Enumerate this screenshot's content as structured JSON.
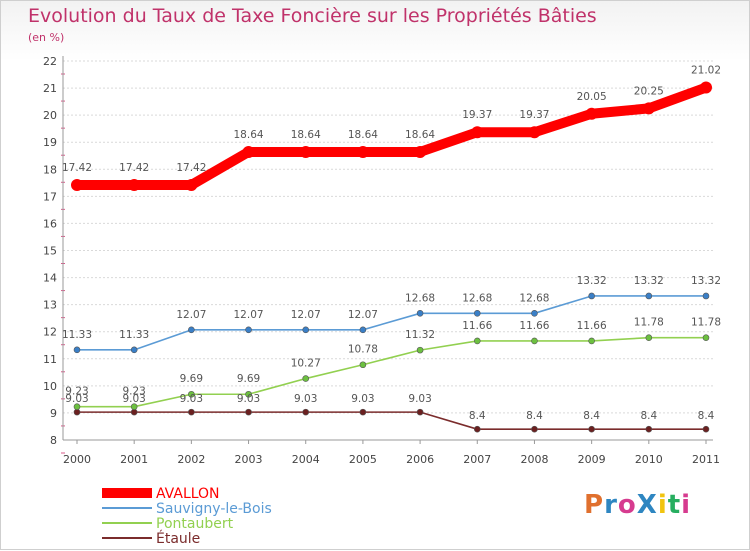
{
  "colors": {
    "title": "#c0326a",
    "series": [
      "#ff0000",
      "#5b9bd5",
      "#92d050",
      "#7b2c2c"
    ],
    "point_fill": [
      "#ff0000",
      "#3a7fc7",
      "#6cc040",
      "#6b2020"
    ],
    "grid": "#d9d9d9",
    "axis": "#999999"
  },
  "logo": {
    "text": "ProXiti",
    "colors": [
      "#e0702e",
      "#2e86c1",
      "#d63b8f",
      "#2e86c1",
      "#f1c40f",
      "#27ae60",
      "#d63b8f"
    ]
  },
  "chart_data": {
    "type": "line",
    "title": "Evolution du Taux de Taxe Foncière sur les Propriétés Bâties",
    "subtitle": "(en %)",
    "xlabel": "",
    "ylabel": "",
    "x": [
      "2000",
      "2001",
      "2002",
      "2003",
      "2004",
      "2005",
      "2006",
      "2007",
      "2008",
      "2009",
      "2010",
      "2011"
    ],
    "ylim": [
      8,
      22
    ],
    "yticks": [
      "8",
      "9",
      "10",
      "11",
      "12",
      "13",
      "14",
      "15",
      "16",
      "17",
      "18",
      "19",
      "20",
      "21",
      "22"
    ],
    "grid": "horizontal",
    "legend_position": "bottom-left",
    "series": [
      {
        "name": "AVALLON",
        "values": [
          17.42,
          17.42,
          17.42,
          18.64,
          18.64,
          18.64,
          18.64,
          19.37,
          19.37,
          20.05,
          20.25,
          21.02
        ],
        "labels": [
          "17.42",
          "17.42",
          "17.42",
          "18.64",
          "18.64",
          "18.64",
          "18.64",
          "19.37",
          "19.37",
          "20.05",
          "20.25",
          "21.02"
        ]
      },
      {
        "name": "Sauvigny-le-Bois",
        "values": [
          11.33,
          11.33,
          12.07,
          12.07,
          12.07,
          12.07,
          12.68,
          12.68,
          12.68,
          13.32,
          13.32,
          13.32
        ],
        "labels": [
          "11.33",
          "11.33",
          "12.07",
          "12.07",
          "12.07",
          "12.07",
          "12.68",
          "12.68",
          "12.68",
          "13.32",
          "13.32",
          "13.32"
        ]
      },
      {
        "name": "Pontaubert",
        "values": [
          9.23,
          9.23,
          9.69,
          9.69,
          10.27,
          10.78,
          11.32,
          11.66,
          11.66,
          11.66,
          11.78,
          11.78
        ],
        "labels": [
          "9.23",
          "9.23",
          "9.69",
          "9.69",
          "10.27",
          "10.78",
          "11.32",
          "11.66",
          "11.66",
          "11.66",
          "11.78",
          "11.78"
        ]
      },
      {
        "name": "Étaule",
        "values": [
          9.03,
          9.03,
          9.03,
          9.03,
          9.03,
          9.03,
          9.03,
          8.4,
          8.4,
          8.4,
          8.4,
          8.4
        ],
        "labels": [
          "9.03",
          "9.03",
          "9.03",
          "9.03",
          "9.03",
          "9.03",
          "9.03",
          "8.4",
          "8.4",
          "8.4",
          "8.4",
          "8.4"
        ]
      }
    ]
  }
}
